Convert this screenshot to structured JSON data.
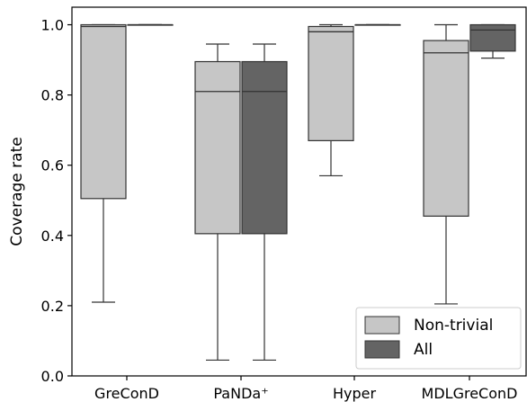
{
  "chart_data": {
    "type": "box",
    "title": "",
    "xlabel": "",
    "ylabel": "Coverage rate",
    "ylim": [
      0.0,
      1.05
    ],
    "yticks": [
      "0.0",
      "0.2",
      "0.4",
      "0.6",
      "0.8",
      "1.0"
    ],
    "grid": false,
    "legend_position": "lower-right",
    "categories": [
      "GreConD",
      "PaNDa⁺",
      "Hyper",
      "MDLGreConD"
    ],
    "series": [
      {
        "name": "Non-trivial",
        "color": "#c6c6c6",
        "boxes": [
          {
            "whislo": 0.21,
            "q1": 0.505,
            "med": 0.995,
            "q3": 1.0,
            "whishi": 1.0
          },
          {
            "whislo": 0.045,
            "q1": 0.405,
            "med": 0.81,
            "q3": 0.895,
            "whishi": 0.945
          },
          {
            "whislo": 0.57,
            "q1": 0.67,
            "med": 0.98,
            "q3": 0.995,
            "whishi": 1.0
          },
          {
            "whislo": 0.205,
            "q1": 0.455,
            "med": 0.92,
            "q3": 0.955,
            "whishi": 1.0
          }
        ]
      },
      {
        "name": "All",
        "color": "#646464",
        "boxes": [
          {
            "whislo": 1.0,
            "q1": 1.0,
            "med": 1.0,
            "q3": 1.0,
            "whishi": 1.0
          },
          {
            "whislo": 0.045,
            "q1": 0.405,
            "med": 0.81,
            "q3": 0.895,
            "whishi": 0.945
          },
          {
            "whislo": 1.0,
            "q1": 1.0,
            "med": 1.0,
            "q3": 1.0,
            "whishi": 1.0
          },
          {
            "whislo": 0.905,
            "q1": 0.925,
            "med": 0.985,
            "q3": 1.0,
            "whishi": 1.0
          }
        ]
      }
    ]
  }
}
